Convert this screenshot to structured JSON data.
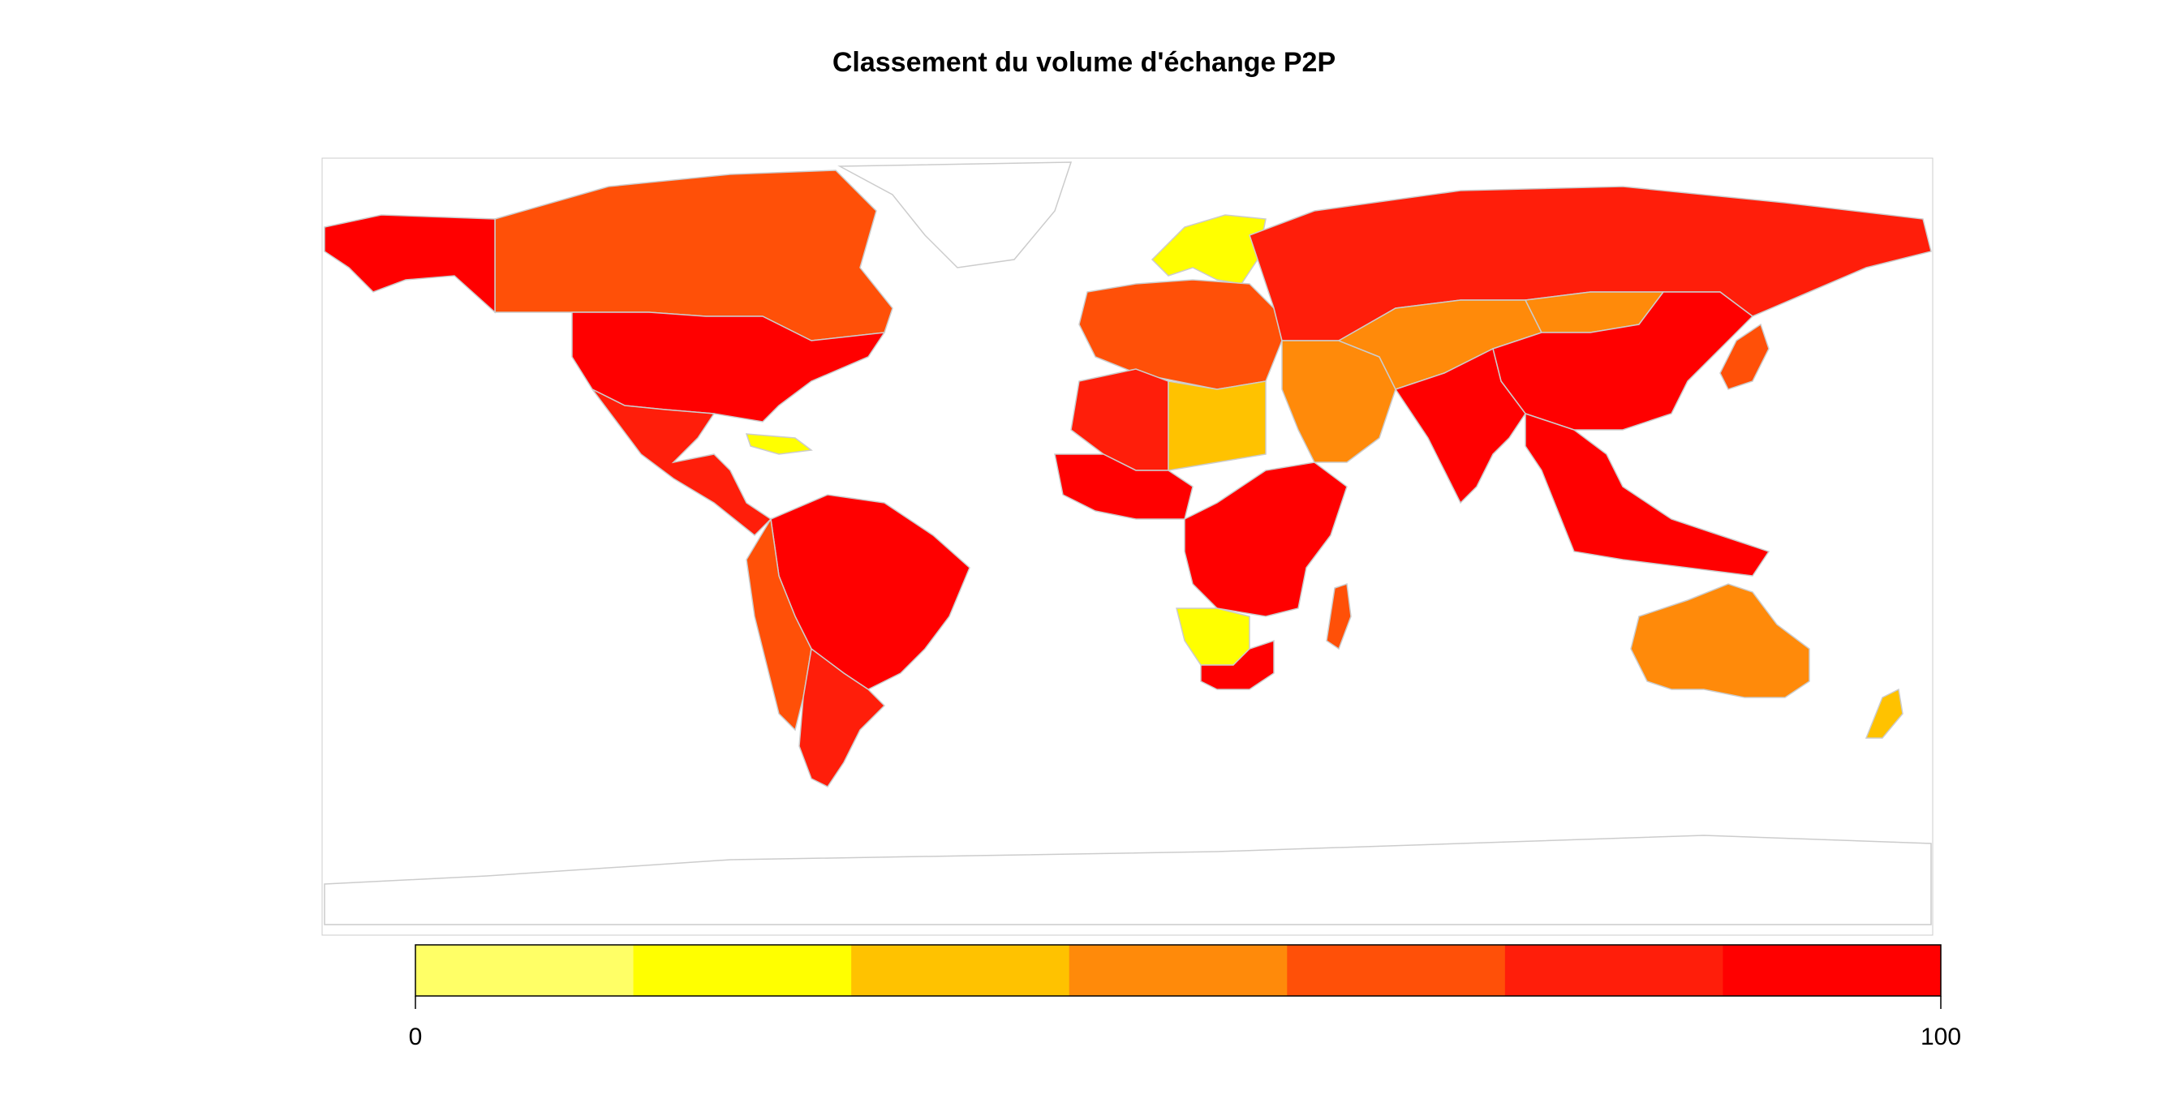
{
  "title": "Classement du volume d'échange P2P",
  "legend": {
    "min_label": "0",
    "max_label": "100",
    "range": [
      0,
      100
    ],
    "bins": 7,
    "colors": [
      "#FFFF66",
      "#FFFF00",
      "#FFC200",
      "#FF8A0A",
      "#FF5008",
      "#FF1E0A",
      "#FF0000"
    ]
  },
  "colors": {
    "no_data_fill": "#ffffff",
    "border": "#cccccc"
  },
  "regions": [
    {
      "name": "north-america",
      "bin": 6
    },
    {
      "name": "canada",
      "bin": 4
    },
    {
      "name": "greenland",
      "bin": null
    },
    {
      "name": "alaska",
      "bin": 6
    },
    {
      "name": "mexico-central-america",
      "bin": 5
    },
    {
      "name": "caribbean",
      "bin": 1
    },
    {
      "name": "south-america",
      "bin": 6
    },
    {
      "name": "andes",
      "bin": 4
    },
    {
      "name": "southern-cone",
      "bin": 5
    },
    {
      "name": "europe",
      "bin": 4
    },
    {
      "name": "scandinavia",
      "bin": 1
    },
    {
      "name": "russia",
      "bin": 5
    },
    {
      "name": "north-africa",
      "bin": 5
    },
    {
      "name": "libya",
      "bin": 2
    },
    {
      "name": "west-africa",
      "bin": 6
    },
    {
      "name": "central-africa",
      "bin": 6
    },
    {
      "name": "southern-africa",
      "bin": 1
    },
    {
      "name": "south-africa",
      "bin": 6
    },
    {
      "name": "middle-east",
      "bin": 3
    },
    {
      "name": "central-asia",
      "bin": 3
    },
    {
      "name": "china",
      "bin": 6
    },
    {
      "name": "mongolia",
      "bin": 3
    },
    {
      "name": "india",
      "bin": 6
    },
    {
      "name": "southeast-asia",
      "bin": 6
    },
    {
      "name": "japan",
      "bin": 4
    },
    {
      "name": "australia",
      "bin": 3
    },
    {
      "name": "new-zealand",
      "bin": 2
    },
    {
      "name": "madagascar",
      "bin": 4
    },
    {
      "name": "antarctica",
      "bin": null
    }
  ]
}
